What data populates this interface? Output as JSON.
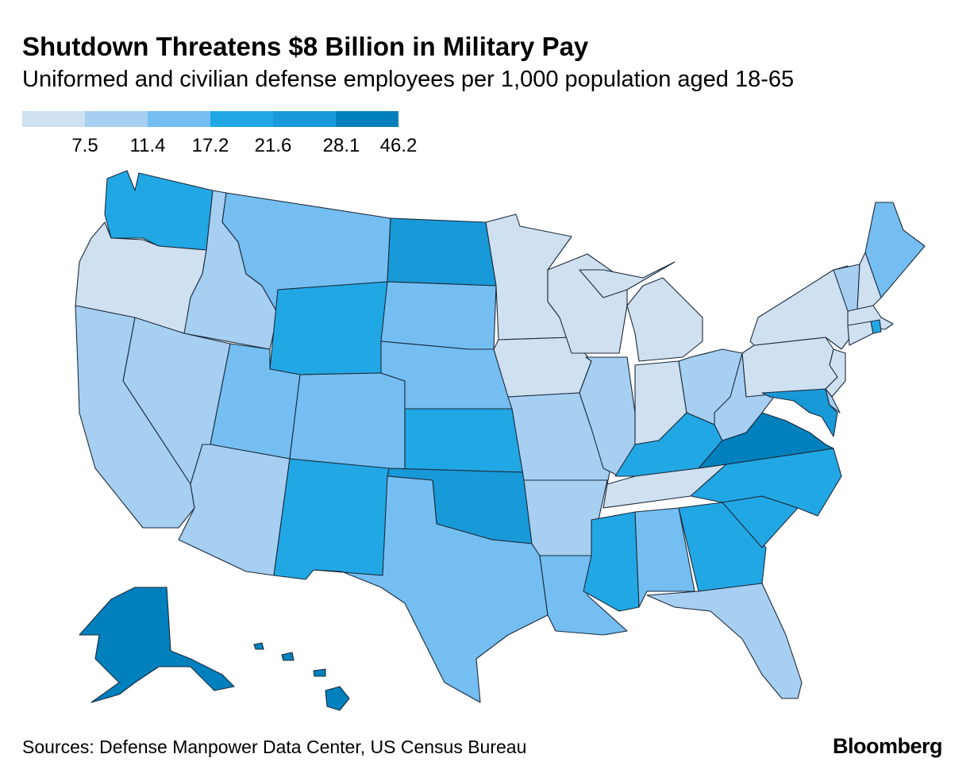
{
  "title": "Shutdown Threatens $8 Billion in Military Pay",
  "subtitle": "Uniformed and civilian defense employees per 1,000 population aged 18-65",
  "legend": {
    "colors": [
      "#cfe0f1",
      "#a6cff2",
      "#74bef2",
      "#22a7e5",
      "#1899d8",
      "#0080bd"
    ],
    "breaks": [
      "7.5",
      "11.4",
      "17.2",
      "21.6",
      "28.1",
      "46.2"
    ]
  },
  "states": {
    "WA": 3,
    "OR": 0,
    "CA": 1,
    "NV": 1,
    "ID": 1,
    "MT": 2,
    "WY": 3,
    "UT": 2,
    "AZ": 1,
    "CO": 2,
    "NM": 3,
    "ND": 4,
    "SD": 2,
    "NE": 2,
    "KS": 3,
    "OK": 4,
    "TX": 2,
    "MN": 0,
    "IA": 0,
    "MO": 1,
    "AR": 1,
    "LA": 2,
    "WI": 0,
    "IL": 1,
    "MI": 0,
    "IN": 0,
    "OH": 1,
    "KY": 3,
    "TN": 0,
    "MS": 3,
    "AL": 2,
    "GA": 3,
    "FL": 1,
    "SC": 3,
    "NC": 3,
    "VA": 5,
    "WV": 1,
    "PA": 0,
    "NY": 0,
    "NJ": 0,
    "MD": 4,
    "DE": 1,
    "VT": 1,
    "NH": 0,
    "ME": 2,
    "MA": 0,
    "CT": 0,
    "RI": 3,
    "AK": 5,
    "HI": 5
  },
  "source": "Sources: Defense Manpower Data Center, US Census Bureau",
  "logo": "Bloomberg"
}
